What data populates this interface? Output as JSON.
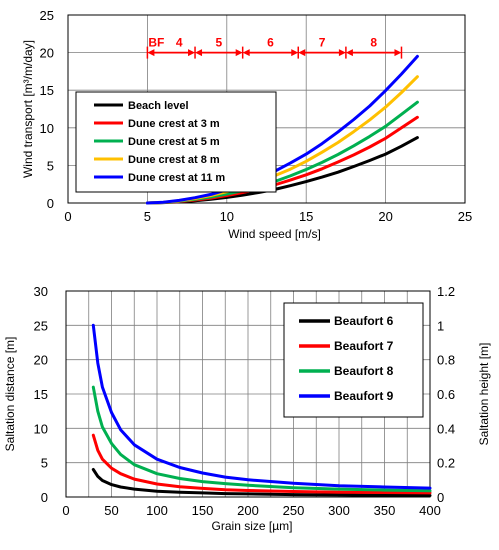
{
  "chart_data": [
    {
      "type": "line",
      "xlabel": "Wind speed [m/s]",
      "ylabel": "Wind transport [m³/m/day]",
      "xlim": [
        0,
        25
      ],
      "ylim": [
        0,
        25
      ],
      "xticks": [
        0,
        5,
        10,
        15,
        20,
        25
      ],
      "yticks": [
        0,
        5,
        10,
        15,
        20,
        25
      ],
      "grid": true,
      "legend_position": "upper-left",
      "x": [
        5,
        6,
        7,
        8,
        9,
        10,
        11,
        12,
        13,
        14,
        15,
        16,
        17,
        18,
        19,
        20,
        21,
        22
      ],
      "series": [
        {
          "name": "Beach level",
          "color": "#000000",
          "values": [
            0,
            0.05,
            0.15,
            0.3,
            0.5,
            0.75,
            1.05,
            1.4,
            1.8,
            2.3,
            2.85,
            3.45,
            4.1,
            4.85,
            5.65,
            6.5,
            7.55,
            8.7
          ]
        },
        {
          "name": "Dune crest at 3 m",
          "color": "#ff0000",
          "values": [
            0,
            0.06,
            0.2,
            0.4,
            0.65,
            1.0,
            1.4,
            1.85,
            2.4,
            3.05,
            3.75,
            4.55,
            5.45,
            6.4,
            7.45,
            8.6,
            10.0,
            11.4
          ]
        },
        {
          "name": "Dune crest at 5 m",
          "color": "#00b050",
          "values": [
            0,
            0.07,
            0.25,
            0.5,
            0.8,
            1.2,
            1.65,
            2.2,
            2.85,
            3.6,
            4.45,
            5.4,
            6.45,
            7.6,
            8.85,
            10.2,
            11.8,
            13.4
          ]
        },
        {
          "name": "Dune crest at 8 m",
          "color": "#ffc000",
          "values": [
            0,
            0.08,
            0.3,
            0.6,
            1.0,
            1.5,
            2.1,
            2.8,
            3.6,
            4.5,
            5.55,
            6.75,
            8.05,
            9.5,
            11.05,
            12.75,
            14.7,
            16.8
          ]
        },
        {
          "name": "Dune crest at 11 m",
          "color": "#0000ff",
          "values": [
            0,
            0.1,
            0.35,
            0.7,
            1.15,
            1.75,
            2.45,
            3.25,
            4.2,
            5.3,
            6.5,
            7.9,
            9.45,
            11.1,
            12.9,
            14.95,
            17.15,
            19.5
          ]
        }
      ],
      "beaufort": {
        "label": "BF",
        "color": "#ff0000",
        "y": 20,
        "boundaries": [
          5,
          8,
          11,
          14.5,
          17.5,
          21
        ],
        "numbers": [
          "4",
          "5",
          "6",
          "7",
          "8"
        ]
      }
    },
    {
      "type": "line",
      "xlabel": "Grain size [µm]",
      "ylabel": "Saltation distance [m]",
      "y2label": "Saltation height [m]",
      "xlim": [
        0,
        400
      ],
      "ylim": [
        0,
        30
      ],
      "y2lim": [
        0,
        1.2
      ],
      "xticks": [
        0,
        50,
        100,
        150,
        200,
        250,
        300,
        350,
        400
      ],
      "yticks": [
        0,
        5,
        10,
        15,
        20,
        25,
        30
      ],
      "y2ticks": [
        "0",
        "0.2",
        "0.4",
        "0.6",
        "0.8",
        "1",
        "1.2"
      ],
      "grid": true,
      "legend_position": "upper-right",
      "x": [
        30,
        35,
        40,
        50,
        60,
        75,
        100,
        125,
        150,
        175,
        200,
        250,
        300,
        350,
        400
      ],
      "series": [
        {
          "name": "Beaufort 6",
          "color": "#000000",
          "values": [
            4.0,
            3.0,
            2.4,
            1.8,
            1.45,
            1.15,
            0.85,
            0.7,
            0.6,
            0.5,
            0.45,
            0.35,
            0.3,
            0.25,
            0.22
          ]
        },
        {
          "name": "Beaufort 7",
          "color": "#ff0000",
          "values": [
            9.0,
            6.8,
            5.5,
            4.2,
            3.4,
            2.6,
            1.9,
            1.5,
            1.25,
            1.05,
            0.95,
            0.8,
            0.7,
            0.65,
            0.6
          ]
        },
        {
          "name": "Beaufort 8",
          "color": "#00b050",
          "values": [
            16.0,
            12.5,
            10.2,
            7.8,
            6.2,
            4.7,
            3.4,
            2.7,
            2.25,
            1.95,
            1.7,
            1.35,
            1.15,
            1.0,
            0.9
          ]
        },
        {
          "name": "Beaufort 9",
          "color": "#0000ff",
          "values": [
            25.0,
            19.5,
            16.0,
            12.3,
            9.8,
            7.6,
            5.5,
            4.3,
            3.5,
            2.9,
            2.5,
            2.0,
            1.65,
            1.45,
            1.3
          ]
        }
      ]
    }
  ]
}
